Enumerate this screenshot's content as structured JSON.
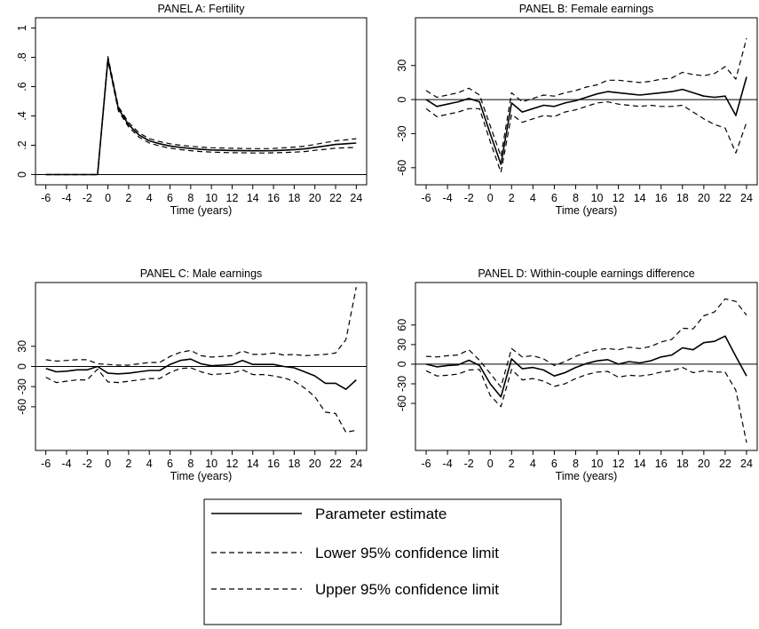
{
  "chart_data": [
    {
      "type": "line",
      "title": "PANEL A: Fertility",
      "xlabel": "Time (years)",
      "ylabel": "",
      "xlim": [
        -7,
        25
      ],
      "ylim": [
        -0.07,
        1.07
      ],
      "xticks": [
        -6,
        -4,
        -2,
        0,
        2,
        4,
        6,
        8,
        10,
        12,
        14,
        16,
        18,
        20,
        22,
        24
      ],
      "xtick_labels": [
        "-6",
        "-4",
        "-2",
        "0",
        "2",
        "4",
        "6",
        "8",
        "10",
        "12",
        "14",
        "16",
        "18",
        "20",
        "22",
        "24"
      ],
      "yticks": [
        0,
        0.2,
        0.4,
        0.6,
        0.8,
        1
      ],
      "ytick_labels": [
        "0",
        ".2",
        ".4",
        ".6",
        ".8",
        "1"
      ],
      "zero_line": true,
      "x": [
        -6,
        -5,
        -4,
        -3,
        -2,
        -1,
        0,
        1,
        2,
        3,
        4,
        5,
        6,
        7,
        8,
        9,
        10,
        11,
        12,
        13,
        14,
        15,
        16,
        17,
        18,
        19,
        20,
        21,
        22,
        23,
        24
      ],
      "series": [
        {
          "name": "Parameter estimate",
          "style": "solid",
          "values": [
            0,
            0,
            0,
            0,
            0,
            0,
            0.79,
            0.45,
            0.34,
            0.27,
            0.23,
            0.21,
            0.195,
            0.185,
            0.178,
            0.172,
            0.168,
            0.166,
            0.164,
            0.163,
            0.162,
            0.162,
            0.163,
            0.166,
            0.17,
            0.175,
            0.185,
            0.195,
            0.205,
            0.21,
            0.215
          ]
        },
        {
          "name": "Lower 95% confidence limit",
          "style": "dashed",
          "values": [
            0,
            0,
            0,
            0,
            0,
            0,
            0.775,
            0.435,
            0.325,
            0.255,
            0.215,
            0.195,
            0.18,
            0.17,
            0.163,
            0.157,
            0.153,
            0.151,
            0.149,
            0.148,
            0.147,
            0.147,
            0.148,
            0.15,
            0.153,
            0.157,
            0.165,
            0.172,
            0.18,
            0.183,
            0.185
          ]
        },
        {
          "name": "Upper 95% confidence limit",
          "style": "dashed",
          "values": [
            0,
            0,
            0,
            0,
            0,
            0,
            0.805,
            0.465,
            0.355,
            0.285,
            0.245,
            0.225,
            0.21,
            0.2,
            0.193,
            0.187,
            0.183,
            0.181,
            0.179,
            0.178,
            0.177,
            0.177,
            0.178,
            0.182,
            0.187,
            0.193,
            0.205,
            0.218,
            0.23,
            0.237,
            0.245
          ]
        }
      ]
    },
    {
      "type": "line",
      "title": "PANEL B: Female earnings",
      "xlabel": "Time (years)",
      "ylabel": "",
      "xlim": [
        -7,
        25
      ],
      "ylim": [
        -75,
        72
      ],
      "xticks": [
        -6,
        -4,
        -2,
        0,
        2,
        4,
        6,
        8,
        10,
        12,
        14,
        16,
        18,
        20,
        22,
        24
      ],
      "xtick_labels": [
        "-6",
        "-4",
        "-2",
        "0",
        "2",
        "4",
        "6",
        "8",
        "10",
        "12",
        "14",
        "16",
        "18",
        "20",
        "22",
        "24"
      ],
      "yticks": [
        -60,
        -30,
        0,
        30
      ],
      "ytick_labels": [
        "-60",
        "-30",
        "0",
        "30"
      ],
      "zero_line": true,
      "x": [
        -6,
        -5,
        -4,
        -3,
        -2,
        -1,
        0,
        1,
        2,
        3,
        4,
        5,
        6,
        7,
        8,
        9,
        10,
        11,
        12,
        13,
        14,
        15,
        16,
        17,
        18,
        19,
        20,
        21,
        22,
        23,
        24
      ],
      "series": [
        {
          "name": "Parameter estimate",
          "style": "solid",
          "values": [
            0,
            -6,
            -4,
            -2,
            1,
            -2,
            -30,
            -57,
            -3,
            -11,
            -8,
            -5,
            -6,
            -3,
            -1,
            2,
            5,
            7,
            6,
            5,
            4,
            5,
            6,
            7,
            9,
            6,
            3,
            2,
            3,
            -14,
            20
          ]
        },
        {
          "name": "Lower 95% confidence limit",
          "style": "dashed",
          "values": [
            -8,
            -15,
            -13,
            -11,
            -8,
            -8,
            -37,
            -64,
            -13,
            -20,
            -17,
            -14,
            -15,
            -11,
            -9,
            -6,
            -3,
            -2,
            -4,
            -5,
            -6,
            -5,
            -6,
            -6,
            -5,
            -11,
            -17,
            -22,
            -25,
            -47,
            -20
          ]
        },
        {
          "name": "Upper 95% confidence limit",
          "style": "dashed",
          "values": [
            8,
            2,
            4,
            6,
            10,
            4,
            -23,
            -50,
            6,
            -2,
            1,
            4,
            3,
            6,
            8,
            11,
            13,
            17,
            17,
            16,
            15,
            16,
            18,
            19,
            24,
            22,
            21,
            23,
            29,
            18,
            54
          ]
        }
      ]
    },
    {
      "type": "line",
      "title": "PANEL C: Male earnings",
      "xlabel": "Time (years)",
      "ylabel": "",
      "xlim": [
        -7,
        25
      ],
      "ylim": [
        -125,
        125
      ],
      "xticks": [
        -6,
        -4,
        -2,
        0,
        2,
        4,
        6,
        8,
        10,
        12,
        14,
        16,
        18,
        20,
        22,
        24
      ],
      "xtick_labels": [
        "-6",
        "-4",
        "-2",
        "0",
        "2",
        "4",
        "6",
        "8",
        "10",
        "12",
        "14",
        "16",
        "18",
        "20",
        "22",
        "24"
      ],
      "yticks": [
        -60,
        -30,
        0,
        30
      ],
      "ytick_labels": [
        "-60",
        "-30",
        "0",
        "30"
      ],
      "zero_line": true,
      "x": [
        -6,
        -5,
        -4,
        -3,
        -2,
        -1,
        0,
        1,
        2,
        3,
        4,
        5,
        6,
        7,
        8,
        9,
        10,
        11,
        12,
        13,
        14,
        15,
        16,
        17,
        18,
        19,
        20,
        21,
        22,
        23,
        24
      ],
      "series": [
        {
          "name": "Parameter estimate",
          "style": "solid",
          "values": [
            -3,
            -8,
            -7,
            -5,
            -5,
            0,
            -10,
            -11,
            -10,
            -8,
            -6,
            -6,
            3,
            9,
            11,
            4,
            1,
            2,
            3,
            9,
            3,
            3,
            3,
            0,
            -2,
            -8,
            -14,
            -25,
            -25,
            -34,
            -20
          ]
        },
        {
          "name": "Lower 95% confidence limit",
          "style": "dashed",
          "values": [
            -16,
            -24,
            -22,
            -20,
            -20,
            -4,
            -23,
            -24,
            -22,
            -20,
            -18,
            -18,
            -9,
            -3,
            -2,
            -8,
            -12,
            -11,
            -10,
            -5,
            -12,
            -12,
            -14,
            -17,
            -22,
            -32,
            -45,
            -68,
            -70,
            -98,
            -95
          ]
        },
        {
          "name": "Upper 95% confidence limit",
          "style": "dashed",
          "values": [
            10,
            8,
            9,
            10,
            10,
            4,
            3,
            2,
            2,
            4,
            6,
            6,
            15,
            21,
            24,
            16,
            14,
            15,
            16,
            23,
            18,
            18,
            20,
            17,
            18,
            16,
            17,
            18,
            20,
            40,
            118
          ]
        }
      ]
    },
    {
      "type": "line",
      "title": "PANEL D: Within-couple earnings difference",
      "xlabel": "Time (years)",
      "ylabel": "",
      "xlim": [
        -7,
        25
      ],
      "ylim": [
        -132,
        125
      ],
      "xticks": [
        -6,
        -4,
        -2,
        0,
        2,
        4,
        6,
        8,
        10,
        12,
        14,
        16,
        18,
        20,
        22,
        24
      ],
      "xtick_labels": [
        "-6",
        "-4",
        "-2",
        "0",
        "2",
        "4",
        "6",
        "8",
        "10",
        "12",
        "14",
        "16",
        "18",
        "20",
        "22",
        "24"
      ],
      "yticks": [
        -60,
        -30,
        0,
        30,
        60
      ],
      "ytick_labels": [
        "-60",
        "-30",
        "0",
        "30",
        "60"
      ],
      "zero_line": true,
      "x": [
        -6,
        -5,
        -4,
        -3,
        -2,
        -1,
        0,
        1,
        2,
        3,
        4,
        5,
        6,
        7,
        8,
        9,
        10,
        11,
        12,
        13,
        14,
        15,
        16,
        17,
        18,
        19,
        20,
        21,
        22,
        23,
        24
      ],
      "series": [
        {
          "name": "Parameter estimate",
          "style": "solid",
          "values": [
            0,
            -4,
            -2,
            -1,
            6,
            -2,
            -30,
            -50,
            8,
            -7,
            -5,
            -9,
            -18,
            -13,
            -5,
            1,
            5,
            7,
            0,
            4,
            2,
            5,
            11,
            14,
            25,
            22,
            33,
            35,
            43,
            12,
            -18
          ]
        },
        {
          "name": "Lower 95% confidence limit",
          "style": "dashed",
          "values": [
            -10,
            -18,
            -17,
            -15,
            -9,
            -8,
            -48,
            -65,
            -8,
            -24,
            -22,
            -26,
            -34,
            -30,
            -22,
            -16,
            -12,
            -11,
            -20,
            -17,
            -18,
            -16,
            -12,
            -10,
            -5,
            -13,
            -10,
            -12,
            -12,
            -40,
            -120
          ]
        },
        {
          "name": "Upper 95% confidence limit",
          "style": "dashed",
          "values": [
            12,
            11,
            13,
            14,
            22,
            6,
            -14,
            -35,
            24,
            11,
            13,
            8,
            -2,
            4,
            12,
            18,
            22,
            24,
            22,
            26,
            24,
            27,
            34,
            38,
            55,
            54,
            74,
            80,
            100,
            96,
            75
          ]
        }
      ]
    }
  ],
  "legend": {
    "placement": "bottom-center",
    "items": [
      {
        "label": "Parameter estimate",
        "style": "solid"
      },
      {
        "label": "Lower 95% confidence limit",
        "style": "dashed"
      },
      {
        "label": "Upper 95% confidence limit",
        "style": "dashed"
      }
    ]
  },
  "colors": {
    "line": "#000000",
    "background": "#ffffff"
  }
}
